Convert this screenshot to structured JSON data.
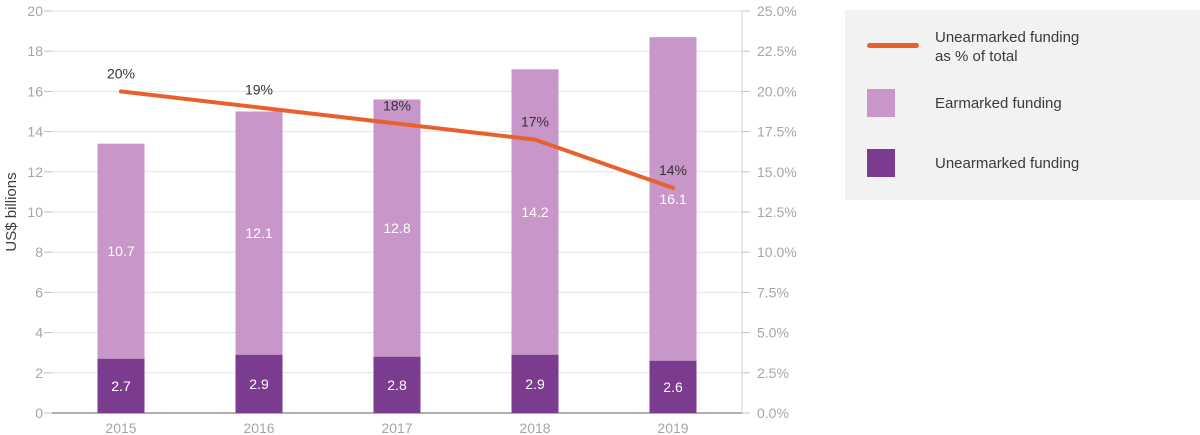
{
  "chart_data": {
    "type": "bar",
    "stacked": true,
    "categories": [
      "2015",
      "2016",
      "2017",
      "2018",
      "2019"
    ],
    "ylabel": "US$ billions",
    "ylim": [
      0,
      20
    ],
    "yticks": [
      "0",
      "2",
      "4",
      "6",
      "8",
      "10",
      "12",
      "14",
      "16",
      "18",
      "20"
    ],
    "y2lim": [
      0,
      25
    ],
    "y2ticks": [
      "0.0%",
      "2.5%",
      "5.0%",
      "7.5%",
      "10.0%",
      "12.5%",
      "15.0%",
      "17.5%",
      "20.0%",
      "22.5%",
      "25.0%"
    ],
    "series": [
      {
        "name": "Unearmarked funding",
        "kind": "bar",
        "color": "#7b3b8f",
        "values": [
          2.7,
          2.9,
          2.8,
          2.9,
          2.6
        ],
        "labels": [
          "2.7",
          "2.9",
          "2.8",
          "2.9",
          "2.6"
        ]
      },
      {
        "name": "Earmarked funding",
        "kind": "bar",
        "color": "#c896c8",
        "values": [
          10.7,
          12.1,
          12.8,
          14.2,
          16.1
        ],
        "labels": [
          "10.7",
          "12.1",
          "12.8",
          "14.2",
          "16.1"
        ]
      },
      {
        "name": "Unearmarked funding as % of total",
        "kind": "line",
        "axis": "right",
        "color": "#e8602c",
        "values": [
          20,
          19,
          18,
          17,
          14
        ],
        "labels": [
          "20%",
          "19%",
          "18%",
          "17%",
          "14%"
        ]
      }
    ],
    "grid": true,
    "legend_position": "right"
  },
  "legend": {
    "items": [
      {
        "label_line1": "Unearmarked funding",
        "label_line2": "as % of total",
        "symbol": "line",
        "color": "#e8602c"
      },
      {
        "label_line1": "Earmarked funding",
        "label_line2": "",
        "symbol": "box",
        "color": "#c896c8"
      },
      {
        "label_line1": "Unearmarked funding",
        "label_line2": "",
        "symbol": "box",
        "color": "#7b3b8f"
      }
    ]
  }
}
